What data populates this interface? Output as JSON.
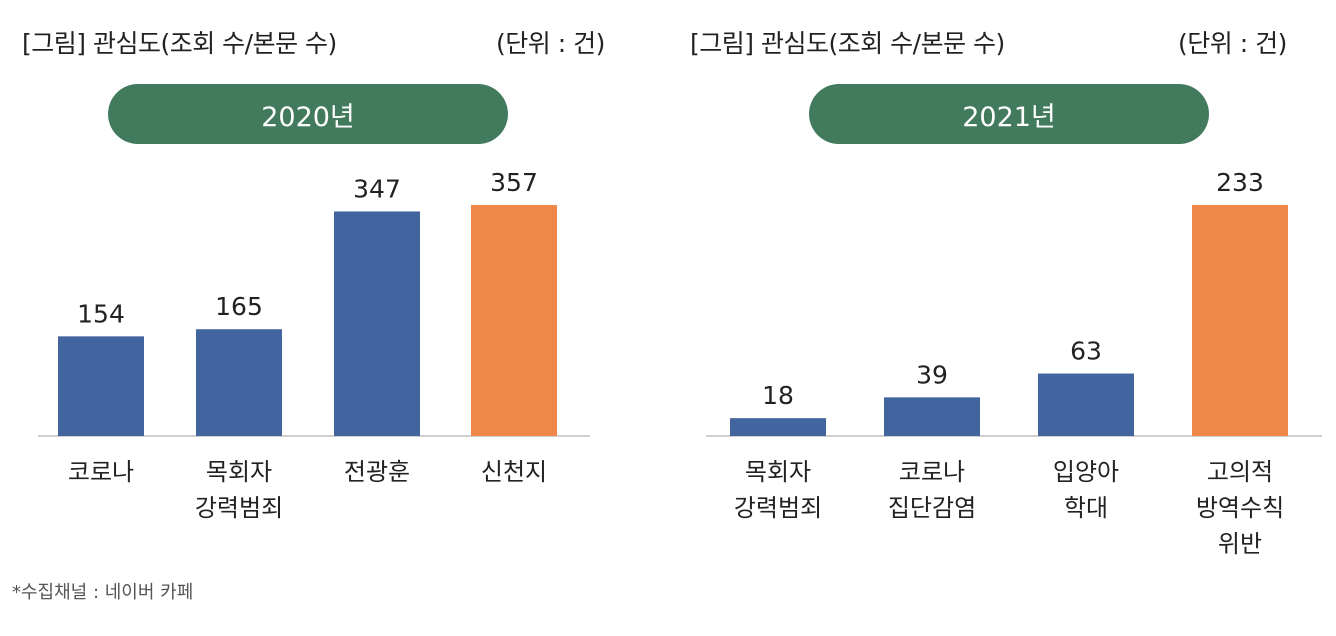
{
  "colors": {
    "bar_default": "#42649F",
    "bar_highlight": "#EE8747",
    "pill": "#427A5E",
    "baseline": "#BFBFBF"
  },
  "chart_data": [
    {
      "type": "bar",
      "title": "[그림] 관심도(조회 수/본문 수)",
      "unit": "(단위 : 건)",
      "badge": "2020년",
      "categories": [
        [
          "코로나"
        ],
        [
          "목회자",
          "강력범죄"
        ],
        [
          "전광훈"
        ],
        [
          "신천지"
        ]
      ],
      "values": [
        154,
        165,
        347,
        357
      ],
      "highlight_index": 3,
      "ylim": [
        0,
        357
      ]
    },
    {
      "type": "bar",
      "title": "[그림] 관심도(조회 수/본문 수)",
      "unit": "(단위 : 건)",
      "badge": "2021년",
      "categories": [
        [
          "목회자",
          "강력범죄"
        ],
        [
          "코로나",
          "집단감염"
        ],
        [
          "입양아",
          "학대"
        ],
        [
          "고의적",
          "방역수칙",
          "위반"
        ]
      ],
      "values": [
        18,
        39,
        63,
        233
      ],
      "highlight_index": 3,
      "ylim": [
        0,
        233
      ]
    }
  ],
  "source": "*수집채널 : 네이버 카페"
}
